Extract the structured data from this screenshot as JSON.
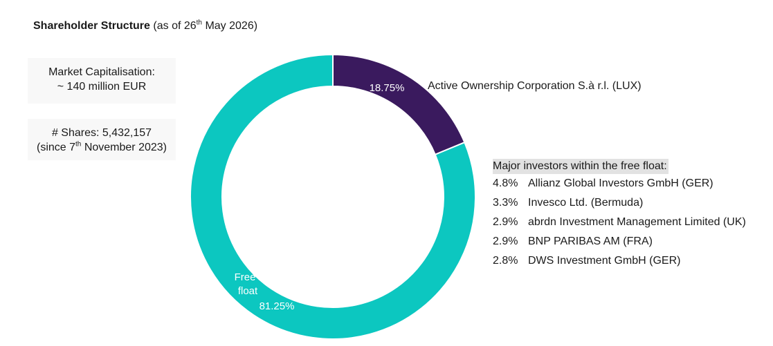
{
  "title": {
    "bold": "Shareholder Structure",
    "prefix": "(as of 26",
    "sup": "th",
    "suffix": " May 2026)"
  },
  "market_cap": {
    "line1": "Market Capitalisation:",
    "line2": "~ 140 million EUR"
  },
  "shares": {
    "line1": "# Shares:  5,432,157",
    "line2_prefix": "(since 7",
    "line2_sup": "th",
    "line2_suffix": " November 2023)"
  },
  "investors": {
    "heading": "Major investors within the free float:",
    "rows": [
      {
        "pct": "4.8%",
        "name": "Allianz Global Investors GmbH (GER)"
      },
      {
        "pct": "3.3%",
        "name": "Invesco Ltd. (Bermuda)"
      },
      {
        "pct": "2.9%",
        "name": "abrdn Investment Management Limited (UK)"
      },
      {
        "pct": "2.9%",
        "name": "BNP PARIBAS AM (FRA)"
      },
      {
        "pct": "2.8%",
        "name": "DWS Investment GmbH (GER)"
      }
    ]
  },
  "chart_data": {
    "type": "pie",
    "donut": true,
    "slices": [
      {
        "label": "Active Ownership Corporation S.à r.l. (LUX)",
        "value": 18.75,
        "value_label": "18.75%",
        "color": "#3a1a5e"
      },
      {
        "label": "Free float",
        "value": 81.25,
        "value_label": "81.25%",
        "color": "#0cc7c0"
      }
    ],
    "annotations": [
      "Free",
      "float",
      "81.25%"
    ]
  }
}
